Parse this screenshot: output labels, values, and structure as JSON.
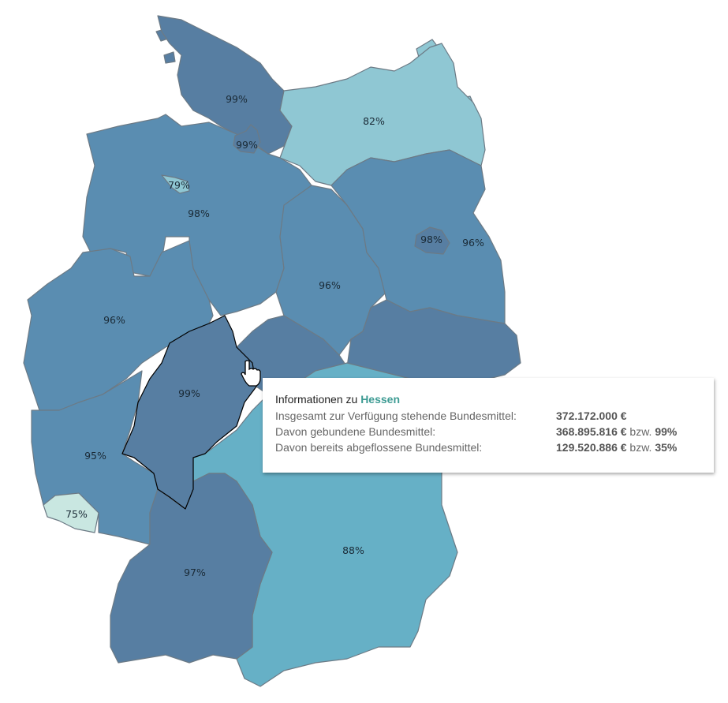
{
  "colors": {
    "very_high": "#577ea2",
    "high": "#5a8db1",
    "mid": "#66b0c6",
    "low": "#8fc7d3",
    "lowest": "#c9e7e1",
    "border": "#6c7a85",
    "highlight_border": "#000000",
    "accent": "#3d9b93"
  },
  "states": [
    {
      "id": "schleswig-holstein",
      "label": "99%",
      "color": "#577ea2"
    },
    {
      "id": "hamburg",
      "label": "99%",
      "color": "#577ea2"
    },
    {
      "id": "mecklenburg-vorpommern",
      "label": "82%",
      "color": "#8fc7d3"
    },
    {
      "id": "bremen",
      "label": "79%",
      "color": "#8fc7d3"
    },
    {
      "id": "niedersachsen",
      "label": "98%",
      "color": "#5a8db1"
    },
    {
      "id": "berlin",
      "label": "98%",
      "color": "#577ea2"
    },
    {
      "id": "brandenburg",
      "label": "96%",
      "color": "#5a8db1"
    },
    {
      "id": "sachsen-anhalt",
      "label": "96%",
      "color": "#5a8db1"
    },
    {
      "id": "nordrhein-westfalen",
      "label": "96%",
      "color": "#5a8db1"
    },
    {
      "id": "hessen",
      "label": "99%",
      "color": "#577ea2"
    },
    {
      "id": "rheinland-pfalz",
      "label": "95%",
      "color": "#5a8db1"
    },
    {
      "id": "saarland",
      "label": "75%",
      "color": "#c9e7e1"
    },
    {
      "id": "baden-wuerttemberg",
      "label": "97%",
      "color": "#577ea2"
    },
    {
      "id": "bayern",
      "label": "88%",
      "color": "#66b0c6"
    },
    {
      "id": "thueringen",
      "label": "",
      "color": "#577ea2"
    },
    {
      "id": "sachsen",
      "label": "",
      "color": "#577ea2"
    }
  ],
  "tooltip": {
    "title_prefix": "Informationen zu",
    "state": "Hessen",
    "rows": [
      {
        "label": "Insgesamt zur Verfügung stehende Bundesmittel:",
        "value": "372.172.000 €",
        "mid": "",
        "pct": ""
      },
      {
        "label": "Davon gebundene Bundesmittel:",
        "value": "368.895.816 €",
        "mid": "bzw.",
        "pct": "99%"
      },
      {
        "label": "Davon bereits abgeflossene Bundesmittel:",
        "value": "129.520.886 €",
        "mid": "bzw.",
        "pct": "35%"
      }
    ]
  },
  "cursor_icon": "hand-pointer-icon"
}
